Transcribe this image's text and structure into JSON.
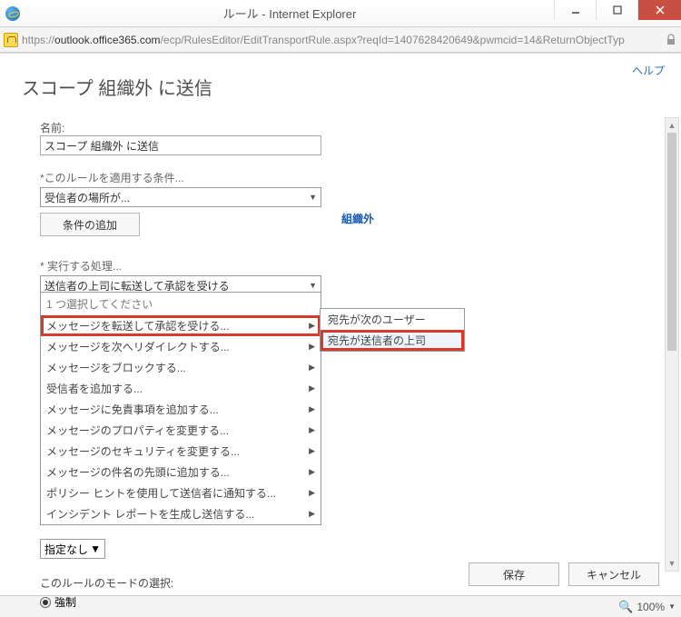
{
  "window": {
    "title": "ルール - Internet Explorer",
    "url_prefix": "https://",
    "url_domain": "outlook.office365.com",
    "url_path": "/ecp/RulesEditor/EditTransportRule.aspx?reqId=1407628420649&pwmcid=14&ReturnObjectTyp"
  },
  "page": {
    "help": "ヘルプ",
    "title": "スコープ 組織外 に送信"
  },
  "form": {
    "name_label": "名前:",
    "name_value": "スコープ 組織外 に送信",
    "condition_label": "*このルールを適用する条件...",
    "condition_value": "受信者の場所が...",
    "condition_side": "組織外",
    "add_condition": "条件の追加",
    "action_label": "* 実行する処理...",
    "action_value": "送信者の上司に転送して承認を受ける",
    "priority_value": "指定なし",
    "mode_label": "このルールのモードの選択:",
    "mode_option": "強制"
  },
  "dropdown": {
    "header": "1 つ選択してください",
    "items": [
      "メッセージを転送して承認を受ける...",
      "メッセージを次へリダイレクトする...",
      "メッセージをブロックする...",
      "受信者を追加する...",
      "メッセージに免責事項を追加する...",
      "メッセージのプロパティを変更する...",
      "メッセージのセキュリティを変更する...",
      "メッセージの件名の先頭に追加する...",
      "ポリシー ヒントを使用して送信者に通知する...",
      "インシデント レポートを生成し送信する..."
    ],
    "highlight_index": 0,
    "highlight_color": "#d83a2a"
  },
  "submenu": {
    "items": [
      "宛先が次のユーザー",
      "宛先が送信者の上司"
    ],
    "highlight_index": 1,
    "highlight_color": "#d83a2a"
  },
  "buttons": {
    "save": "保存",
    "cancel": "キャンセル"
  },
  "status": {
    "zoom": "100%"
  },
  "colors": {
    "link": "#2a6dc0",
    "accent": "#1a5ab8",
    "close_btn": "#c94f43",
    "border": "#999999",
    "text": "#444444"
  }
}
